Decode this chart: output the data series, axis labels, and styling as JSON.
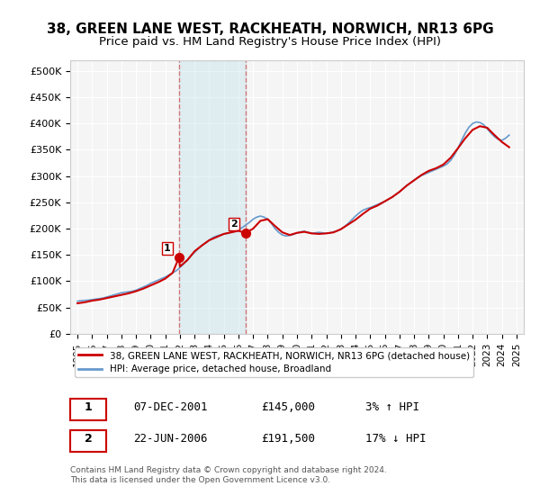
{
  "title": "38, GREEN LANE WEST, RACKHEATH, NORWICH, NR13 6PG",
  "subtitle": "Price paid vs. HM Land Registry's House Price Index (HPI)",
  "title_fontsize": 11,
  "subtitle_fontsize": 9.5,
  "ylabel_ticks": [
    "£0",
    "£50K",
    "£100K",
    "£150K",
    "£200K",
    "£250K",
    "£300K",
    "£350K",
    "£400K",
    "£450K",
    "£500K"
  ],
  "ytick_values": [
    0,
    50000,
    100000,
    150000,
    200000,
    250000,
    300000,
    350000,
    400000,
    450000,
    500000
  ],
  "ylim": [
    0,
    520000
  ],
  "xlim_start": 1994.5,
  "xlim_end": 2025.5,
  "background_color": "#ffffff",
  "plot_bg_color": "#f5f5f5",
  "grid_color": "#ffffff",
  "marker1_x": 2001.93,
  "marker1_y": 145000,
  "marker1_label": "1",
  "marker2_x": 2006.47,
  "marker2_y": 191500,
  "marker2_label": "2",
  "marker_color": "#cc0000",
  "vline_color": "#cc0000",
  "vline_alpha": 0.5,
  "shade_color": "#add8e6",
  "shade_alpha": 0.3,
  "line1_color": "#cc0000",
  "line2_color": "#6699cc",
  "legend_label1": "38, GREEN LANE WEST, RACKHEATH, NORWICH, NR13 6PG (detached house)",
  "legend_label2": "HPI: Average price, detached house, Broadland",
  "table_row1": [
    "1",
    "07-DEC-2001",
    "£145,000",
    "3% ↑ HPI"
  ],
  "table_row2": [
    "2",
    "22-JUN-2006",
    "£191,500",
    "17% ↓ HPI"
  ],
  "footer": "Contains HM Land Registry data © Crown copyright and database right 2024.\nThis data is licensed under the Open Government Licence v3.0.",
  "hpi_years": [
    1995,
    1995.25,
    1995.5,
    1995.75,
    1996,
    1996.25,
    1996.5,
    1996.75,
    1997,
    1997.25,
    1997.5,
    1997.75,
    1998,
    1998.25,
    1998.5,
    1998.75,
    1999,
    1999.25,
    1999.5,
    1999.75,
    2000,
    2000.25,
    2000.5,
    2000.75,
    2001,
    2001.25,
    2001.5,
    2001.75,
    2002,
    2002.25,
    2002.5,
    2002.75,
    2003,
    2003.25,
    2003.5,
    2003.75,
    2004,
    2004.25,
    2004.5,
    2004.75,
    2005,
    2005.25,
    2005.5,
    2005.75,
    2006,
    2006.25,
    2006.5,
    2006.75,
    2007,
    2007.25,
    2007.5,
    2007.75,
    2008,
    2008.25,
    2008.5,
    2008.75,
    2009,
    2009.25,
    2009.5,
    2009.75,
    2010,
    2010.25,
    2010.5,
    2010.75,
    2011,
    2011.25,
    2011.5,
    2011.75,
    2012,
    2012.25,
    2012.5,
    2012.75,
    2013,
    2013.25,
    2013.5,
    2013.75,
    2014,
    2014.25,
    2014.5,
    2014.75,
    2015,
    2015.25,
    2015.5,
    2015.75,
    2016,
    2016.25,
    2016.5,
    2016.75,
    2017,
    2017.25,
    2017.5,
    2017.75,
    2018,
    2018.25,
    2018.5,
    2018.75,
    2019,
    2019.25,
    2019.5,
    2019.75,
    2020,
    2020.25,
    2020.5,
    2020.75,
    2021,
    2021.25,
    2021.5,
    2021.75,
    2022,
    2022.25,
    2022.5,
    2022.75,
    2023,
    2023.25,
    2023.5,
    2023.75,
    2024,
    2024.25,
    2024.5
  ],
  "hpi_values": [
    62000,
    63000,
    63500,
    64000,
    65000,
    66000,
    67000,
    68000,
    70000,
    72000,
    74000,
    76000,
    78000,
    79000,
    80000,
    81000,
    83000,
    86000,
    89000,
    92000,
    96000,
    99000,
    102000,
    105000,
    108000,
    112000,
    116000,
    120000,
    126000,
    133000,
    140000,
    148000,
    155000,
    162000,
    168000,
    173000,
    178000,
    183000,
    186000,
    188000,
    190000,
    191000,
    193000,
    195000,
    198000,
    202000,
    207000,
    212000,
    218000,
    222000,
    224000,
    222000,
    218000,
    210000,
    200000,
    193000,
    188000,
    186000,
    187000,
    189000,
    192000,
    194000,
    195000,
    193000,
    191000,
    192000,
    193000,
    192000,
    191000,
    192000,
    194000,
    196000,
    199000,
    204000,
    210000,
    217000,
    224000,
    230000,
    235000,
    238000,
    240000,
    243000,
    246000,
    249000,
    252000,
    256000,
    260000,
    265000,
    270000,
    276000,
    282000,
    287000,
    292000,
    297000,
    301000,
    304000,
    307000,
    310000,
    313000,
    316000,
    319000,
    323000,
    330000,
    340000,
    353000,
    368000,
    382000,
    393000,
    400000,
    403000,
    402000,
    398000,
    390000,
    382000,
    375000,
    370000,
    368000,
    372000,
    378000
  ],
  "price_years": [
    1995,
    1995.5,
    1996,
    1996.5,
    1997,
    1997.5,
    1998,
    1998.5,
    1999,
    1999.5,
    2000,
    2000.5,
    2001,
    2001.5,
    2001.93,
    2002,
    2002.5,
    2003,
    2003.5,
    2004,
    2004.5,
    2005,
    2005.5,
    2006,
    2006.47,
    2007,
    2007.5,
    2008,
    2008.5,
    2009,
    2009.5,
    2010,
    2010.5,
    2011,
    2011.5,
    2012,
    2012.5,
    2013,
    2013.5,
    2014,
    2014.5,
    2015,
    2015.5,
    2016,
    2016.5,
    2017,
    2017.5,
    2018,
    2018.5,
    2019,
    2019.5,
    2020,
    2020.5,
    2021,
    2021.5,
    2022,
    2022.5,
    2023,
    2023.5,
    2024,
    2024.5
  ],
  "price_values": [
    58000,
    60000,
    63000,
    65000,
    68000,
    71000,
    74000,
    77000,
    81000,
    86000,
    92000,
    98000,
    105000,
    116000,
    145000,
    128000,
    140000,
    157000,
    168000,
    178000,
    184000,
    190000,
    193000,
    196000,
    191500,
    200000,
    215000,
    218000,
    205000,
    193000,
    188000,
    192000,
    194000,
    191000,
    190000,
    191000,
    193000,
    199000,
    208000,
    217000,
    228000,
    238000,
    244000,
    252000,
    260000,
    270000,
    282000,
    292000,
    302000,
    310000,
    315000,
    322000,
    335000,
    353000,
    372000,
    388000,
    395000,
    392000,
    378000,
    365000,
    355000
  ]
}
